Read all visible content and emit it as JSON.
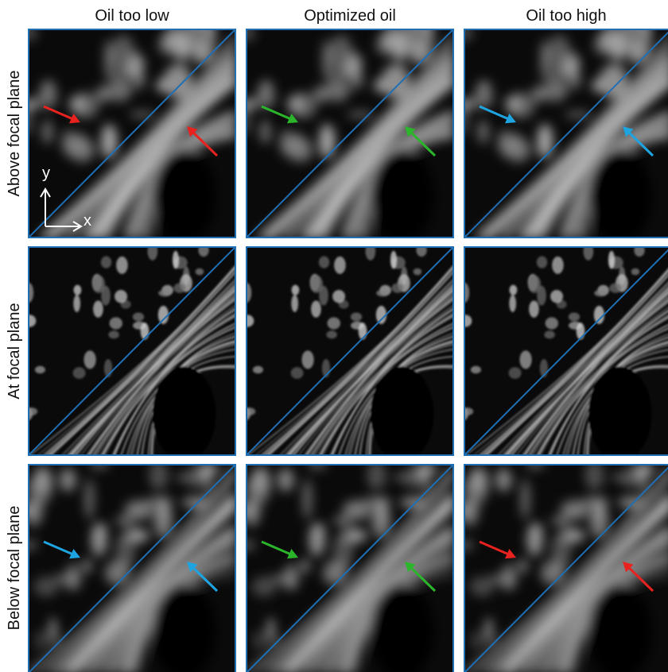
{
  "columns": [
    "Oil too low",
    "Optimized oil",
    "Oil too high"
  ],
  "rows": [
    "Above focal plane",
    "At focal plane",
    "Below focal plane"
  ],
  "axes": {
    "y": "y",
    "x": "x"
  }
}
